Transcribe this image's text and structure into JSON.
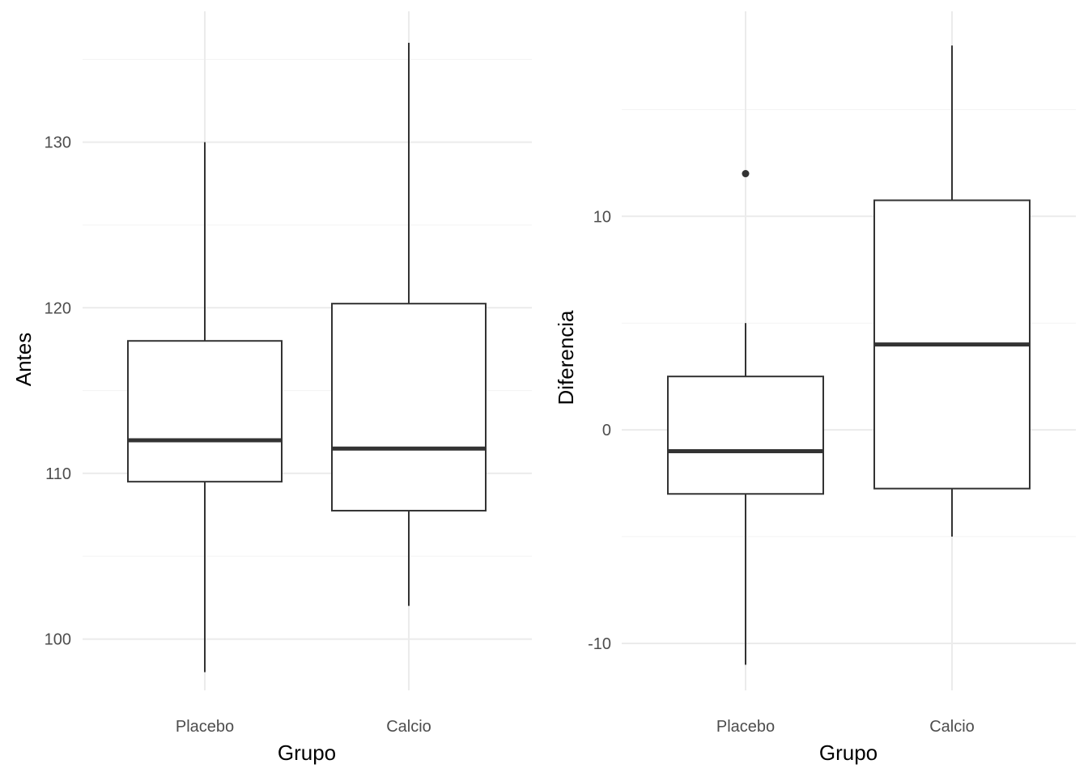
{
  "chart_data": [
    {
      "type": "boxplot",
      "xlabel": "Grupo",
      "ylabel": "Antes",
      "categories": [
        "Placebo",
        "Calcio"
      ],
      "ylim": [
        96.9,
        137.9
      ],
      "yticks": [
        100,
        110,
        120,
        130
      ],
      "yticks_minor": [
        105,
        115,
        125,
        135
      ],
      "grid": true,
      "boxes": [
        {
          "category": "Placebo",
          "whisker_low": 98,
          "q1": 109.5,
          "median": 112,
          "q3": 118,
          "whisker_high": 130,
          "outliers": []
        },
        {
          "category": "Calcio",
          "whisker_low": 102,
          "q1": 107.75,
          "median": 111.5,
          "q3": 120.25,
          "whisker_high": 136,
          "outliers": []
        }
      ]
    },
    {
      "type": "boxplot",
      "xlabel": "Grupo",
      "ylabel": "Diferencia",
      "categories": [
        "Placebo",
        "Calcio"
      ],
      "ylim": [
        -12.2,
        19.6
      ],
      "yticks": [
        -10,
        0,
        10
      ],
      "yticks_minor": [
        -5,
        5,
        15
      ],
      "grid": true,
      "boxes": [
        {
          "category": "Placebo",
          "whisker_low": -11,
          "q1": -3,
          "median": -1,
          "q3": 2.5,
          "whisker_high": 5,
          "outliers": [
            12
          ]
        },
        {
          "category": "Calcio",
          "whisker_low": -5,
          "q1": -2.75,
          "median": 4,
          "q3": 10.75,
          "whisker_high": 18,
          "outliers": []
        }
      ]
    }
  ]
}
